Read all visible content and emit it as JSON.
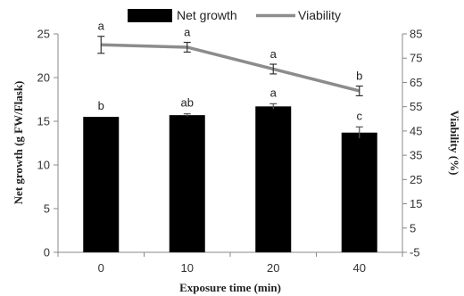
{
  "chart_data": {
    "type": "bar",
    "categories": [
      "0",
      "10",
      "20",
      "40"
    ],
    "xlabel": "Exposure time (min)",
    "bars": {
      "name": "Net growth",
      "ylabel": "Net growth (g FW/Flask)",
      "values": [
        15.5,
        15.7,
        16.7,
        13.7
      ],
      "errors": [
        0.0,
        0.15,
        0.3,
        0.65
      ],
      "sig_labels": [
        "b",
        "ab",
        "a",
        "c"
      ],
      "ylim": [
        0,
        25
      ],
      "yticks": [
        "0",
        "5",
        "10",
        "15",
        "20",
        "25"
      ],
      "color": "#000000"
    },
    "line": {
      "name": "Viability",
      "ylabel": "Viability (%)",
      "values": [
        80.5,
        79.5,
        70.5,
        61.5
      ],
      "errors": [
        3.5,
        2.0,
        2.0,
        2.0
      ],
      "sig_labels": [
        "a",
        "a",
        "a",
        "b"
      ],
      "ylim": [
        -5,
        85
      ],
      "yticks": [
        "-5",
        "5",
        "15",
        "25",
        "35",
        "45",
        "55",
        "65",
        "75",
        "85"
      ],
      "color": "#8c8c8c"
    },
    "legend_position": "top-center",
    "grid": false
  }
}
